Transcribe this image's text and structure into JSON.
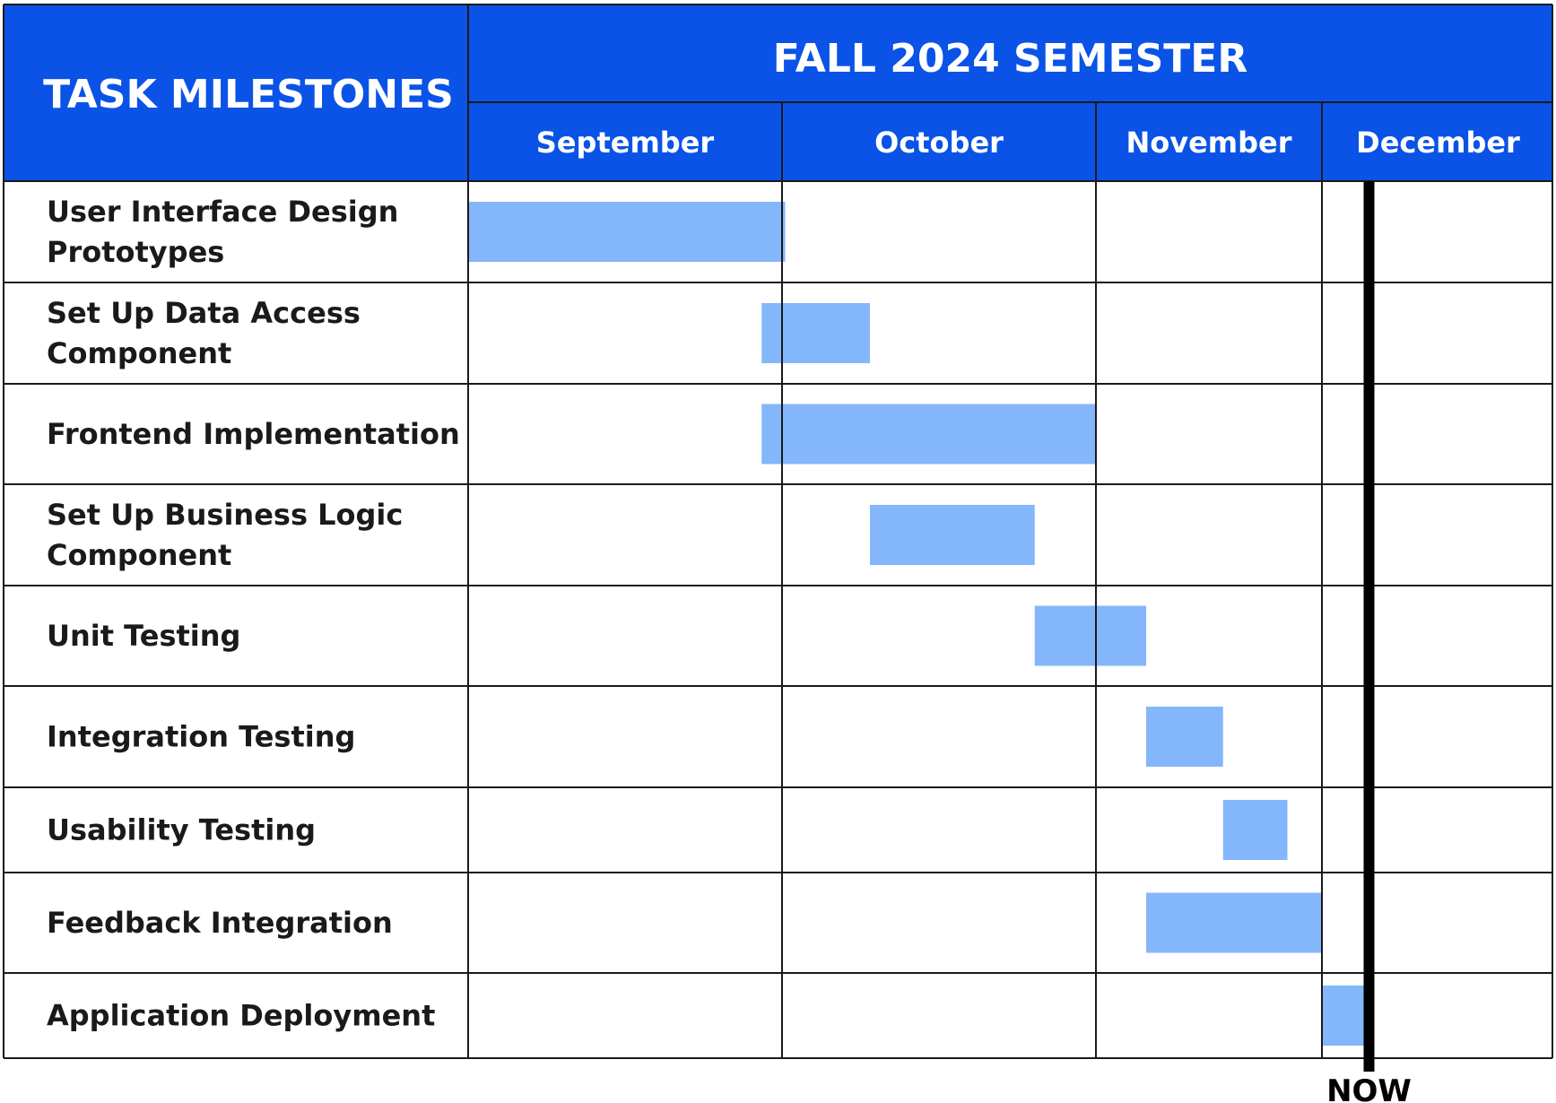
{
  "chart_data": {
    "type": "gantt",
    "title": "FALL 2024 SEMESTER",
    "task_header": "TASK MILESTONES",
    "months": [
      {
        "name": "September",
        "start": 0,
        "end": 1
      },
      {
        "name": "October",
        "start": 1,
        "end": 2
      },
      {
        "name": "November",
        "start": 2,
        "end": 2.72
      },
      {
        "name": "December",
        "start": 2.72,
        "end": 3.46
      }
    ],
    "tasks": [
      {
        "label_lines": [
          "User Interface Design",
          "Prototypes"
        ],
        "start": 0.0,
        "end": 1.01
      },
      {
        "label_lines": [
          "Set Up Data Access",
          "Component"
        ],
        "start": 0.935,
        "end": 1.28
      },
      {
        "label_lines": [
          "Frontend Implementation"
        ],
        "start": 0.935,
        "end": 2.0
      },
      {
        "label_lines": [
          "Set Up Business Logic",
          "Component"
        ],
        "start": 1.28,
        "end": 1.805
      },
      {
        "label_lines": [
          "Unit Testing"
        ],
        "start": 1.805,
        "end": 2.16
      },
      {
        "label_lines": [
          "Integration Testing"
        ],
        "start": 2.16,
        "end": 2.405
      },
      {
        "label_lines": [
          "Usability Testing"
        ],
        "start": 2.405,
        "end": 2.61
      },
      {
        "label_lines": [
          "Feedback Integration"
        ],
        "start": 2.16,
        "end": 2.72
      },
      {
        "label_lines": [
          "Application Deployment"
        ],
        "start": 2.72,
        "end": 2.86
      }
    ],
    "now_marker": {
      "label": "NOW",
      "position": 2.87
    },
    "colors": {
      "header": "#0a53e6",
      "bar": "#84b6fc",
      "grid": "#1a1a1a",
      "now_line": "#000000"
    }
  }
}
